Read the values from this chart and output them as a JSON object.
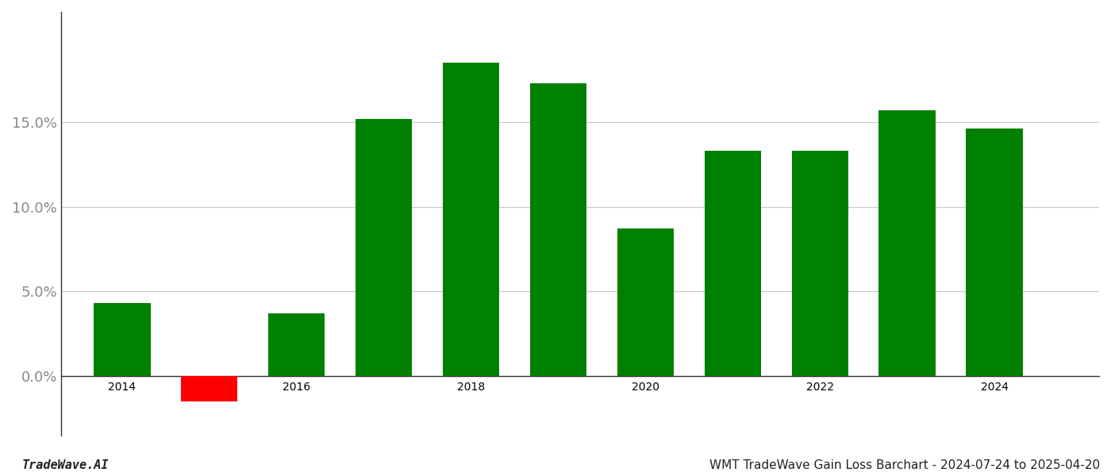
{
  "years": [
    2014,
    2015,
    2016,
    2017,
    2018,
    2019,
    2020,
    2021,
    2022,
    2023,
    2024
  ],
  "values": [
    0.043,
    -0.015,
    0.037,
    0.152,
    0.185,
    0.173,
    0.087,
    0.133,
    0.133,
    0.157,
    0.146
  ],
  "green_color": "#008000",
  "red_color": "#ff0000",
  "bg_color": "#ffffff",
  "grid_color": "#c8c8c8",
  "spine_color": "#333333",
  "tick_color": "#888888",
  "ylabel_ticks": [
    0.0,
    0.05,
    0.1,
    0.15
  ],
  "ylim": [
    -0.035,
    0.215
  ],
  "xlim": [
    2013.3,
    2025.2
  ],
  "footer_left": "TradeWave.AI",
  "footer_right": "WMT TradeWave Gain Loss Barchart - 2024-07-24 to 2025-04-20",
  "bar_width": 0.65,
  "tick_fontsize": 13,
  "footer_fontsize": 11
}
